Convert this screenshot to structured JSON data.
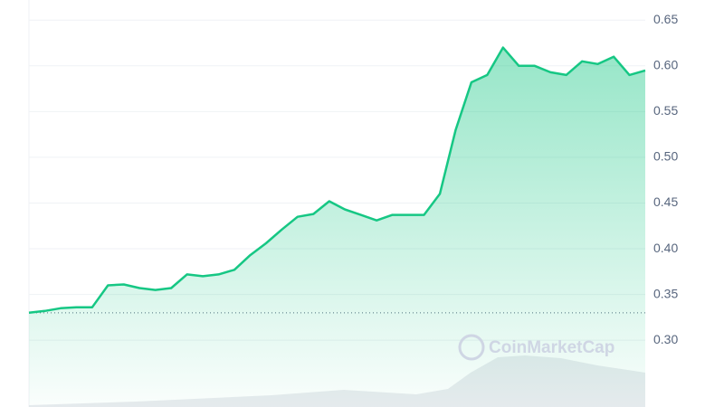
{
  "chart_data": {
    "type": "area",
    "series": [
      {
        "name": null,
        "color": "#16c784",
        "values": [
          0.33,
          0.332,
          0.335,
          0.336,
          0.336,
          0.36,
          0.361,
          0.357,
          0.355,
          0.357,
          0.372,
          0.37,
          0.372,
          0.377,
          0.393,
          0.406,
          0.421,
          0.435,
          0.438,
          0.452,
          0.443,
          0.437,
          0.431,
          0.437,
          0.437,
          0.437,
          0.46,
          0.53,
          0.582,
          0.59,
          0.62,
          0.6,
          0.6,
          0.593,
          0.59,
          0.605,
          0.602,
          0.61,
          0.59,
          0.595
        ]
      }
    ],
    "ylim": [
      0.227,
      0.672
    ],
    "yticks": [
      {
        "value": 0.3,
        "label": "0.30"
      },
      {
        "value": 0.35,
        "label": "0.35"
      },
      {
        "value": 0.4,
        "label": "0.40"
      },
      {
        "value": 0.45,
        "label": "0.45"
      },
      {
        "value": 0.5,
        "label": "0.50"
      },
      {
        "value": 0.55,
        "label": "0.55"
      },
      {
        "value": 0.6,
        "label": "0.60"
      },
      {
        "value": 0.65,
        "label": "0.65"
      }
    ],
    "baseline": 0.33,
    "grid": true,
    "watermark": "CoinMarketCap"
  }
}
